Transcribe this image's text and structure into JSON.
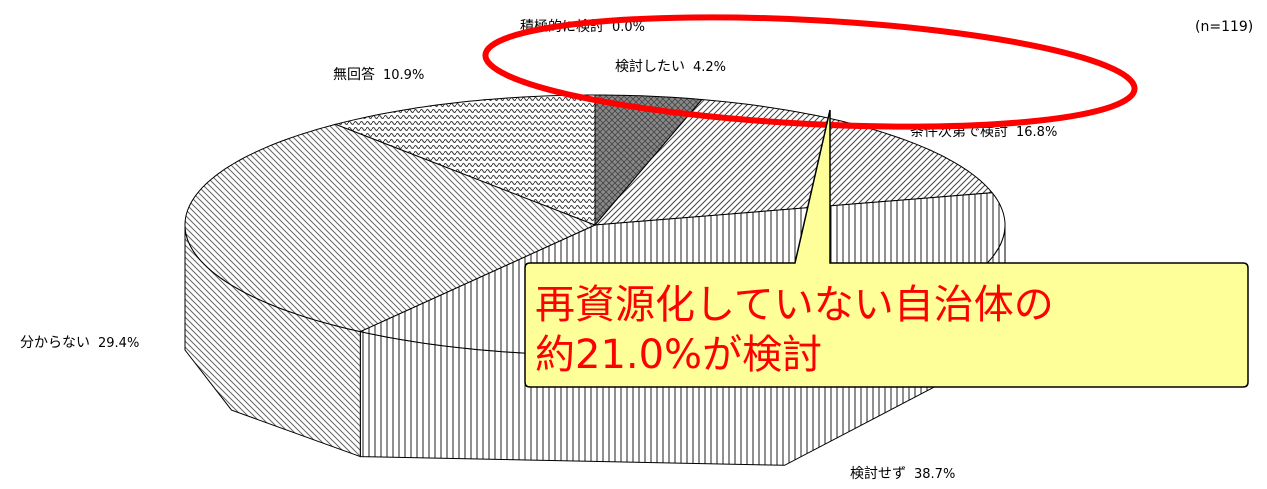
{
  "chart_data": {
    "type": "pie3d",
    "categories": [
      "積極的に検討",
      "検討したい",
      "条件次第で検討",
      "検討せず",
      "分からない",
      "無回答"
    ],
    "values": [
      0.0,
      4.2,
      16.8,
      38.7,
      29.4,
      10.9
    ],
    "value_labels": [
      "0.0%",
      "4.2%",
      "16.8%",
      "38.7%",
      "29.4%",
      "10.9%"
    ],
    "colors": [
      "#333333",
      "#555555",
      "#444444",
      "#222222",
      "#666666",
      "#333333"
    ],
    "annotations": [
      "(n=119)",
      "再資源化していない自治体の",
      "約21.0%が検討"
    ]
  }
}
